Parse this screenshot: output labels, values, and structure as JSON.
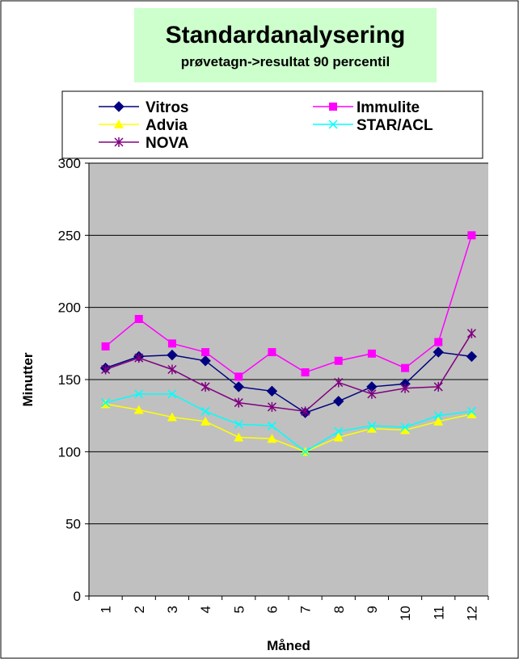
{
  "chart_data": {
    "type": "line",
    "title": "Standardanalysering",
    "subtitle": "prøvetagn->resultat 90 percentil",
    "xlabel": "Måned",
    "ylabel": "Minutter",
    "categories": [
      "1",
      "2",
      "3",
      "4",
      "5",
      "6",
      "7",
      "8",
      "9",
      "10",
      "11",
      "12"
    ],
    "ylim": [
      0,
      300
    ],
    "yticks": [
      0,
      50,
      100,
      150,
      200,
      250,
      300
    ],
    "grid": true,
    "legend_position": "top",
    "series": [
      {
        "name": "Vitros",
        "color": "#000080",
        "marker": "diamond",
        "values": [
          158,
          166,
          167,
          163,
          145,
          142,
          127,
          135,
          145,
          147,
          169,
          166
        ]
      },
      {
        "name": "Immulite",
        "color": "#ff00ff",
        "marker": "square",
        "values": [
          173,
          192,
          175,
          169,
          152,
          169,
          155,
          163,
          168,
          158,
          176,
          250
        ]
      },
      {
        "name": "Advia",
        "color": "#ffff00",
        "marker": "triangle",
        "values": [
          133,
          129,
          124,
          121,
          110,
          109,
          100,
          110,
          116,
          115,
          121,
          126
        ]
      },
      {
        "name": "STAR/ACL",
        "color": "#00ffff",
        "marker": "x",
        "values": [
          134,
          140,
          140,
          128,
          119,
          118,
          100,
          114,
          118,
          117,
          125,
          128
        ]
      },
      {
        "name": "NOVA",
        "color": "#800080",
        "marker": "star",
        "values": [
          157,
          165,
          157,
          145,
          134,
          131,
          128,
          148,
          140,
          144,
          145,
          182
        ]
      }
    ]
  }
}
